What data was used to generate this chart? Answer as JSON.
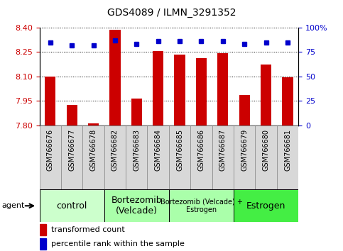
{
  "title": "GDS4089 / ILMN_3291352",
  "samples": [
    "GSM766676",
    "GSM766677",
    "GSM766678",
    "GSM766682",
    "GSM766683",
    "GSM766684",
    "GSM766685",
    "GSM766686",
    "GSM766687",
    "GSM766679",
    "GSM766680",
    "GSM766681"
  ],
  "transformed_counts": [
    8.1,
    7.925,
    7.815,
    8.385,
    7.965,
    8.255,
    8.235,
    8.215,
    8.245,
    7.985,
    8.175,
    8.095
  ],
  "percentile_ranks": [
    85,
    82,
    82,
    87,
    83,
    86,
    86,
    86,
    86,
    83,
    85,
    85
  ],
  "ylim_left": [
    7.8,
    8.4
  ],
  "ylim_right": [
    0,
    100
  ],
  "yticks_left": [
    7.8,
    7.95,
    8.1,
    8.25,
    8.4
  ],
  "yticks_right": [
    0,
    25,
    50,
    75,
    100
  ],
  "bar_color": "#cc0000",
  "dot_color": "#0000cc",
  "bar_base": 7.8,
  "groups": [
    {
      "label": "control",
      "start": 0,
      "end": 3,
      "color": "#ccffcc",
      "fontsize": 9
    },
    {
      "label": "Bortezomib\n(Velcade)",
      "start": 3,
      "end": 6,
      "color": "#aaffaa",
      "fontsize": 9
    },
    {
      "label": "Bortezomib (Velcade) +\nEstrogen",
      "start": 6,
      "end": 9,
      "color": "#aaffaa",
      "fontsize": 7
    },
    {
      "label": "Estrogen",
      "start": 9,
      "end": 12,
      "color": "#44ee44",
      "fontsize": 9
    }
  ],
  "agent_label": "agent",
  "legend_bar_label": "transformed count",
  "legend_dot_label": "percentile rank within the sample",
  "tick_label_color_left": "#cc0000",
  "tick_label_color_right": "#0000cc",
  "sample_box_color": "#d8d8d8",
  "sample_box_edge": "#888888"
}
